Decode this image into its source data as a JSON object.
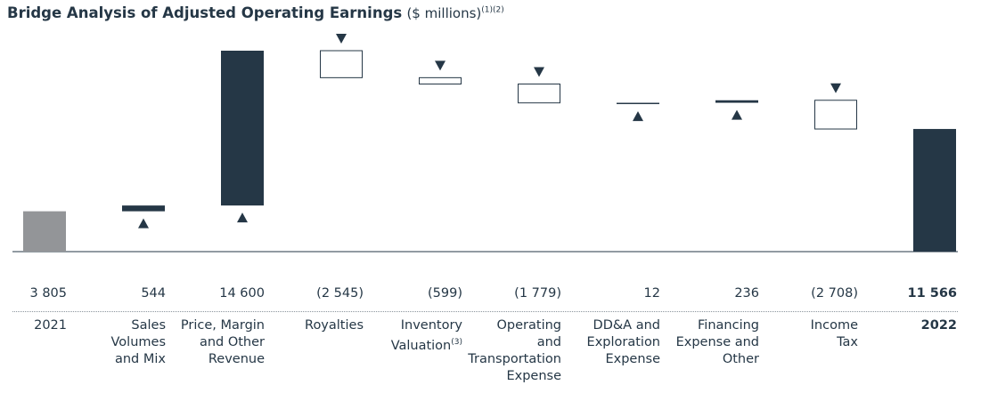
{
  "chart_data": {
    "type": "waterfall",
    "title": "Bridge Analysis of Adjusted Operating Earnings",
    "subtitle": "($ millions)",
    "title_notes": "(1)(2)",
    "categories": [
      "2021",
      "Sales\nVolumes\nand Mix",
      "Price, Margin\nand Other\nRevenue",
      "Royalties",
      "Inventory\nValuation",
      "Operating\nand\nTransportation\nExpense",
      "DD&A and\nExploration\nExpense",
      "Financing\nExpense and\nOther",
      "Income\nTax",
      "2022"
    ],
    "category_notes": [
      null,
      null,
      null,
      null,
      "(3)",
      null,
      null,
      null,
      null,
      null
    ],
    "measures": [
      "absolute",
      "relative",
      "relative",
      "relative",
      "relative",
      "relative",
      "relative",
      "relative",
      "relative",
      "total"
    ],
    "values": [
      3805,
      544,
      14600,
      -2545,
      -599,
      -1779,
      12,
      236,
      -2708,
      11566
    ],
    "value_labels": [
      "3 805",
      "544",
      "14 600",
      "(2 545)",
      "(599)",
      "(1 779)",
      "12",
      "236",
      "(2 708)",
      "11 566"
    ],
    "start_color": "#939598",
    "increase_color": "#253746",
    "decrease_color": "#ffffff",
    "total_color": "#253746"
  }
}
